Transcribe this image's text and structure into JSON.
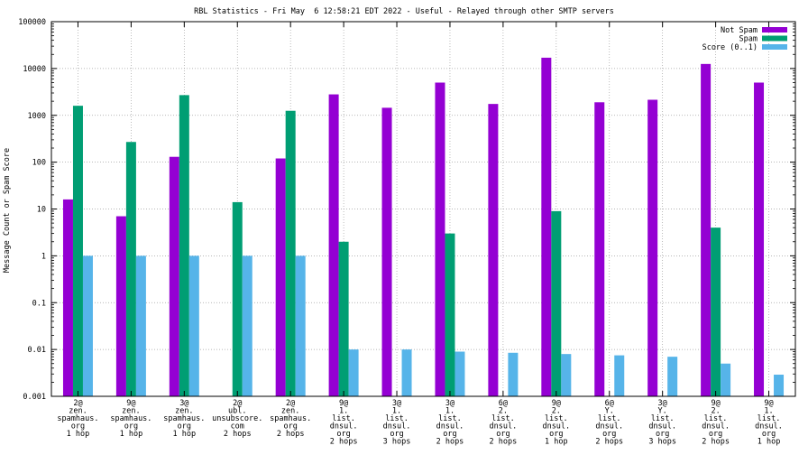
{
  "chart_data": {
    "type": "bar",
    "title": "RBL Statistics - Fri May  6 12:58:21 EDT 2022 - Useful - Relayed through other SMTP servers",
    "xlabel": "",
    "ylabel": "Message Count or Spam Score",
    "yscale": "log",
    "ylim": [
      0.001,
      100000
    ],
    "yticks": [
      "0.001",
      "0.01",
      "0.1",
      "1",
      "10",
      "100",
      "1000",
      "10000",
      "100000"
    ],
    "grid": true,
    "legend_position": "top-right",
    "categories": [
      [
        "2@",
        "zen.",
        "spamhaus.",
        "org",
        "1 hop"
      ],
      [
        "9@",
        "zen.",
        "spamhaus.",
        "org",
        "1 hop"
      ],
      [
        "3@",
        "zen.",
        "spamhaus.",
        "org",
        "1 hop"
      ],
      [
        "2@",
        "ubl.",
        "unsubscore.",
        "com",
        "2 hops"
      ],
      [
        "2@",
        "zen.",
        "spamhaus.",
        "org",
        "2 hops"
      ],
      [
        "9@",
        "1.",
        "list.",
        "dnsul.",
        "org",
        "2 hops"
      ],
      [
        "3@",
        "1.",
        "list.",
        "dnsul.",
        "org",
        "3 hops"
      ],
      [
        "3@",
        "1.",
        "list.",
        "dnsul.",
        "org",
        "2 hops"
      ],
      [
        "6@",
        "2.",
        "list.",
        "dnsul.",
        "org",
        "2 hops"
      ],
      [
        "9@",
        "2.",
        "list.",
        "dnsul.",
        "org",
        "1 hop"
      ],
      [
        "6@",
        "Y.",
        "list.",
        "dnsul.",
        "org",
        "2 hops"
      ],
      [
        "3@",
        "Y.",
        "list.",
        "dnsul.",
        "org",
        "3 hops"
      ],
      [
        "9@",
        "2.",
        "list.",
        "dnsul.",
        "org",
        "2 hops"
      ],
      [
        "9@",
        "1.",
        "list.",
        "dnsul.",
        "org",
        "1 hop"
      ]
    ],
    "series": [
      {
        "name": "Not Spam",
        "color": "#9400d3",
        "values": [
          16,
          7,
          130,
          null,
          120,
          2800,
          1450,
          5000,
          1750,
          17000,
          1900,
          2150,
          12500,
          5000
        ]
      },
      {
        "name": "Spam",
        "color": "#009e73",
        "values": [
          1600,
          270,
          2700,
          14,
          1250,
          2,
          null,
          3,
          null,
          9,
          null,
          null,
          4,
          null
        ]
      },
      {
        "name": "Score (0..1)",
        "color": "#56b4e9",
        "values": [
          1,
          1,
          1,
          1,
          1,
          0.01,
          0.01,
          0.009,
          0.0085,
          0.008,
          0.0075,
          0.007,
          0.005,
          0.0029
        ]
      }
    ]
  }
}
